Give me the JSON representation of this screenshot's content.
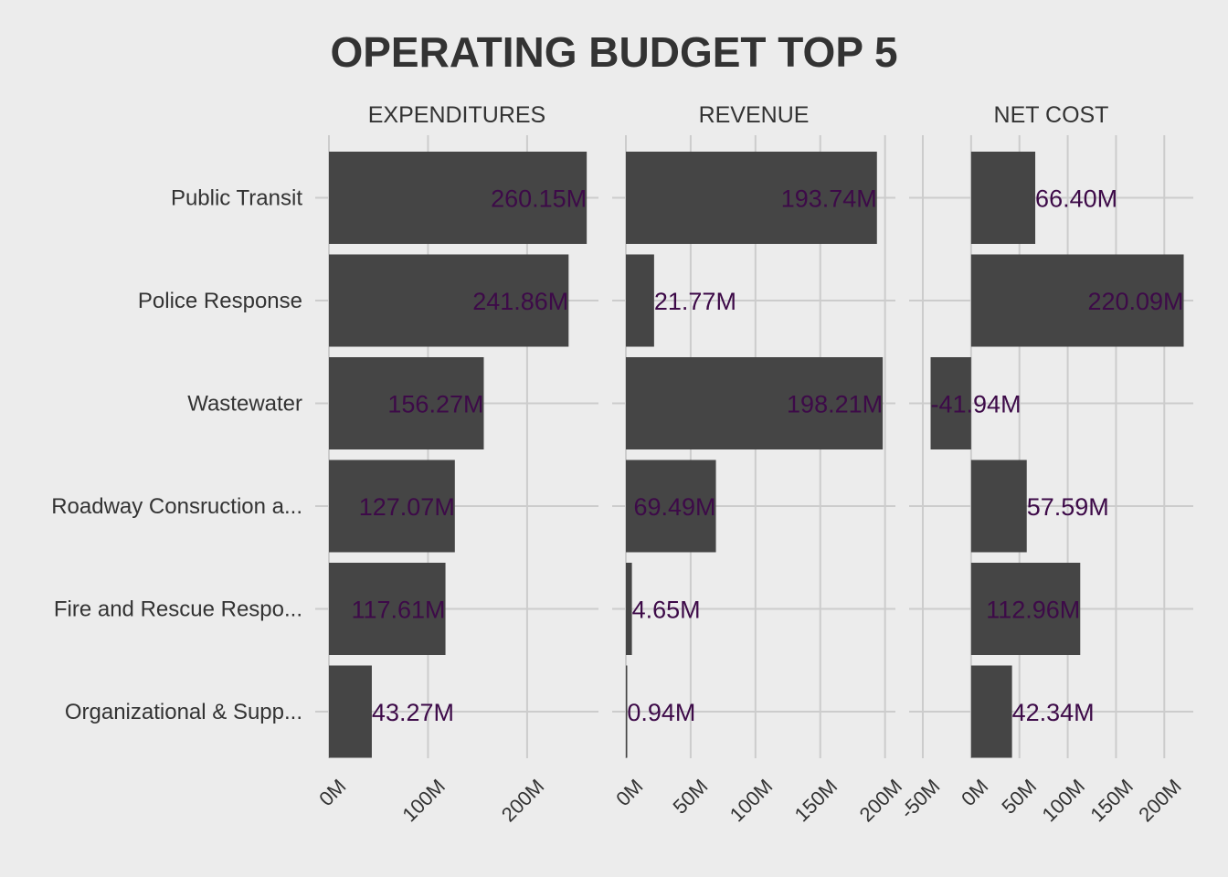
{
  "chart_data": {
    "type": "bar",
    "orientation": "horizontal",
    "title": "OPERATING BUDGET TOP 5",
    "categories": [
      "Public Transit",
      "Police Response",
      "Wastewater",
      "Roadway Consruction a...",
      "Fire and Rescue Respo...",
      "Organizational & Supp..."
    ],
    "panels": [
      {
        "name": "EXPENDITURES",
        "values": [
          260.15,
          241.86,
          156.27,
          127.07,
          117.61,
          43.27
        ],
        "labels": [
          "260.15M",
          "241.86M",
          "156.27M",
          "127.07M",
          "117.61M",
          "43.27M"
        ],
        "xlim": [
          0,
          272
        ],
        "ticks": [
          0,
          100,
          200
        ],
        "tick_labels": [
          "0M",
          "100M",
          "200M"
        ]
      },
      {
        "name": "REVENUE",
        "values": [
          193.74,
          21.77,
          198.21,
          69.49,
          4.65,
          0.94
        ],
        "labels": [
          "193.74M",
          "21.77M",
          "198.21M",
          "69.49M",
          "4.65M",
          "0.94M"
        ],
        "xlim": [
          0,
          208
        ],
        "ticks": [
          0,
          50,
          100,
          150,
          200
        ],
        "tick_labels": [
          "0M",
          "50M",
          "100M",
          "150M",
          "200M"
        ]
      },
      {
        "name": "NET COST",
        "values": [
          66.4,
          220.09,
          -41.94,
          57.59,
          112.96,
          42.34
        ],
        "labels": [
          "66.40M",
          "220.09M",
          "-41.94M",
          "57.59M",
          "112.96M",
          "42.34M"
        ],
        "xlim": [
          -50,
          230
        ],
        "ticks": [
          -50,
          0,
          50,
          100,
          150,
          200
        ],
        "tick_labels": [
          "-50M",
          "0M",
          "50M",
          "100M",
          "150M",
          "200M"
        ]
      }
    ],
    "grid": true,
    "legend": "none",
    "colors": {
      "bar": "#454545",
      "label": "#3d0a48",
      "background": "#ececec",
      "grid": "#cccccc"
    }
  }
}
